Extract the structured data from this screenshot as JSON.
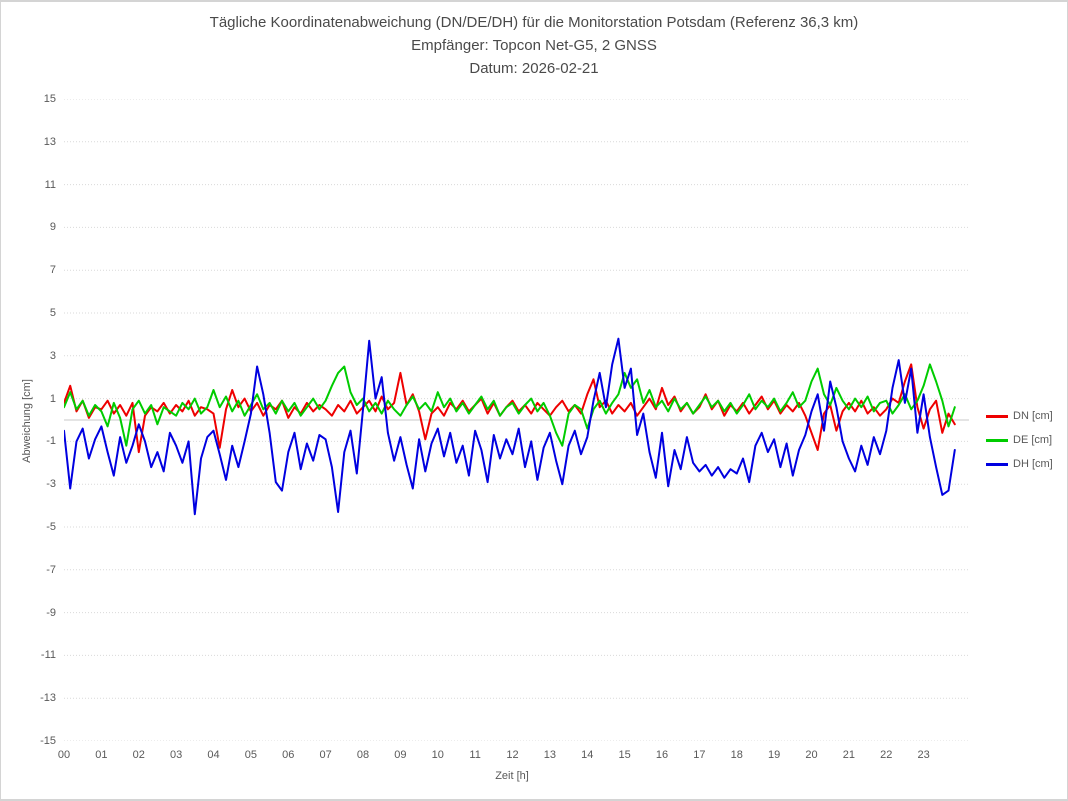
{
  "window": {
    "background": "#ffffff",
    "border_color": "#d4d4d4",
    "text_color": "#595959"
  },
  "chart_data": {
    "type": "line",
    "title": "Tägliche Koordinatenabweichung (DN/DE/DH) für die Monitorstation Potsdam (Referenz 36,3 km)",
    "subtitle": "Empfänger: Topcon Net-G5, 2 GNSS",
    "date_line": "Datum: 2026-02-21",
    "xlabel": "Zeit [h]",
    "ylabel": "Abweichung [cm]",
    "ylim": [
      -15,
      15
    ],
    "y_ticks": [
      15,
      13,
      11,
      9,
      7,
      5,
      3,
      1,
      -1,
      -3,
      -5,
      -7,
      -9,
      -11,
      -13,
      -15
    ],
    "x_ticks": [
      "00",
      "01",
      "02",
      "03",
      "04",
      "05",
      "06",
      "07",
      "08",
      "09",
      "10",
      "11",
      "12",
      "13",
      "14",
      "15",
      "16",
      "17",
      "18",
      "19",
      "20",
      "21",
      "22",
      "23"
    ],
    "x_start_hour": 0,
    "x_end_hour": 24,
    "sample_interval_minutes": 10,
    "grid": {
      "style": "dotted",
      "color": "#d9d9d9",
      "zero_line_color": "#c8c8c8",
      "zero_line_value": 0
    },
    "legend_position": "right",
    "series": [
      {
        "name": "DN [cm]",
        "color": "#ee0000",
        "values": [
          0.8,
          1.6,
          0.4,
          0.9,
          0.1,
          0.6,
          0.5,
          0.9,
          0.3,
          0.7,
          0.2,
          0.8,
          -1.5,
          0.2,
          0.6,
          0.4,
          0.8,
          0.3,
          0.7,
          0.4,
          0.9,
          0.2,
          0.6,
          0.5,
          0.3,
          -1.3,
          0.5,
          1.4,
          0.6,
          1.0,
          0.4,
          0.8,
          0.2,
          0.7,
          0.5,
          0.9,
          0.1,
          0.6,
          0.3,
          0.8,
          0.4,
          0.7,
          0.5,
          0.2,
          0.7,
          0.4,
          0.9,
          0.3,
          0.6,
          0.9,
          0.4,
          1.1,
          0.5,
          0.8,
          2.2,
          0.7,
          1.2,
          0.4,
          -0.9,
          0.3,
          0.6,
          0.2,
          0.8,
          0.5,
          0.9,
          0.4,
          0.7,
          1.0,
          0.3,
          0.8,
          0.2,
          0.6,
          0.9,
          0.4,
          0.7,
          0.3,
          0.8,
          0.5,
          0.2,
          0.6,
          0.9,
          0.4,
          0.7,
          0.3,
          1.2,
          1.9,
          0.6,
          0.9,
          0.3,
          0.7,
          0.4,
          0.8,
          0.2,
          0.6,
          1.0,
          0.5,
          1.5,
          0.7,
          1.1,
          0.4,
          0.8,
          0.3,
          0.6,
          1.2,
          0.5,
          0.9,
          0.2,
          0.7,
          0.4,
          0.8,
          0.3,
          0.7,
          1.1,
          0.5,
          0.9,
          0.3,
          0.7,
          0.4,
          0.8,
          0.2,
          -0.6,
          -1.4,
          0.3,
          0.7,
          -0.5,
          0.4,
          0.8,
          0.4,
          0.9,
          0.3,
          0.6,
          0.2,
          0.5,
          1.0,
          0.8,
          1.8,
          2.6,
          0.6,
          -0.4,
          0.5,
          0.9,
          -0.6,
          0.3,
          -0.2
        ]
      },
      {
        "name": "DE [cm]",
        "color": "#00cc00",
        "values": [
          0.6,
          1.3,
          0.5,
          0.9,
          0.2,
          0.7,
          0.4,
          -0.3,
          0.8,
          0.1,
          -1.2,
          0.5,
          0.9,
          0.3,
          0.7,
          -0.2,
          0.6,
          0.4,
          0.2,
          0.8,
          0.5,
          1.0,
          0.3,
          0.6,
          1.4,
          0.6,
          1.1,
          0.4,
          0.9,
          0.2,
          0.7,
          1.2,
          0.5,
          0.8,
          0.3,
          0.9,
          0.4,
          0.8,
          0.2,
          0.6,
          1.0,
          0.5,
          0.9,
          1.6,
          2.2,
          2.5,
          1.3,
          0.7,
          1.0,
          0.4,
          0.8,
          0.3,
          0.9,
          0.5,
          0.2,
          0.7,
          1.1,
          0.5,
          0.8,
          0.4,
          1.3,
          0.6,
          1.0,
          0.4,
          0.8,
          0.3,
          0.7,
          1.1,
          0.5,
          0.9,
          0.2,
          0.6,
          0.8,
          0.3,
          0.7,
          1.0,
          0.4,
          0.8,
          0.2,
          -0.6,
          -1.2,
          0.3,
          0.7,
          0.5,
          -0.4,
          0.5,
          0.9,
          0.3,
          0.8,
          1.2,
          2.2,
          1.5,
          1.9,
          0.8,
          1.4,
          0.6,
          0.9,
          0.4,
          1.0,
          0.5,
          0.8,
          0.3,
          0.7,
          1.1,
          0.6,
          0.9,
          0.4,
          0.8,
          0.3,
          0.7,
          1.2,
          0.5,
          0.9,
          0.6,
          1.0,
          0.4,
          0.8,
          1.3,
          0.6,
          0.9,
          1.8,
          2.4,
          1.2,
          0.7,
          1.5,
          0.9,
          0.5,
          1.0,
          0.6,
          1.1,
          0.4,
          0.8,
          0.9,
          0.3,
          0.7,
          1.2,
          0.5,
          0.9,
          1.6,
          2.6,
          1.8,
          0.9,
          -0.3,
          0.6
        ]
      },
      {
        "name": "DH [cm]",
        "color": "#0000e0",
        "values": [
          -0.5,
          -3.2,
          -1.0,
          -0.4,
          -1.8,
          -0.9,
          -0.3,
          -1.5,
          -2.6,
          -0.8,
          -2.0,
          -1.2,
          -0.2,
          -1.0,
          -2.2,
          -1.5,
          -2.4,
          -0.6,
          -1.2,
          -2.0,
          -1.0,
          -4.4,
          -1.8,
          -0.8,
          -0.5,
          -1.6,
          -2.8,
          -1.2,
          -2.2,
          -1.0,
          0.3,
          2.5,
          1.2,
          -0.6,
          -2.9,
          -3.3,
          -1.5,
          -0.6,
          -2.3,
          -1.1,
          -1.9,
          -0.7,
          -0.9,
          -2.2,
          -4.3,
          -1.5,
          -0.5,
          -2.5,
          0.5,
          3.7,
          1.0,
          2.0,
          -0.6,
          -1.9,
          -0.8,
          -2.1,
          -3.2,
          -0.9,
          -2.4,
          -1.1,
          -0.4,
          -1.7,
          -0.6,
          -2.0,
          -1.2,
          -2.6,
          -0.5,
          -1.4,
          -2.9,
          -0.7,
          -1.8,
          -0.9,
          -1.6,
          -0.4,
          -2.2,
          -1.0,
          -2.8,
          -1.3,
          -0.6,
          -1.9,
          -3.0,
          -1.2,
          -0.5,
          -1.6,
          -0.8,
          0.9,
          2.2,
          0.6,
          2.6,
          3.8,
          1.5,
          2.4,
          -0.7,
          0.3,
          -1.5,
          -2.7,
          -0.6,
          -3.1,
          -1.4,
          -2.3,
          -0.8,
          -2.0,
          -2.4,
          -2.1,
          -2.6,
          -2.2,
          -2.7,
          -2.3,
          -2.5,
          -1.8,
          -2.9,
          -1.2,
          -0.6,
          -1.5,
          -0.9,
          -2.2,
          -1.1,
          -2.6,
          -1.4,
          -0.7,
          0.4,
          1.2,
          -0.5,
          1.8,
          0.6,
          -1.0,
          -1.8,
          -2.4,
          -1.2,
          -2.1,
          -0.8,
          -1.6,
          -0.5,
          1.5,
          2.8,
          0.8,
          2.4,
          -0.6,
          1.2,
          -0.8,
          -2.2,
          -3.5,
          -3.3,
          -1.4
        ]
      }
    ]
  }
}
